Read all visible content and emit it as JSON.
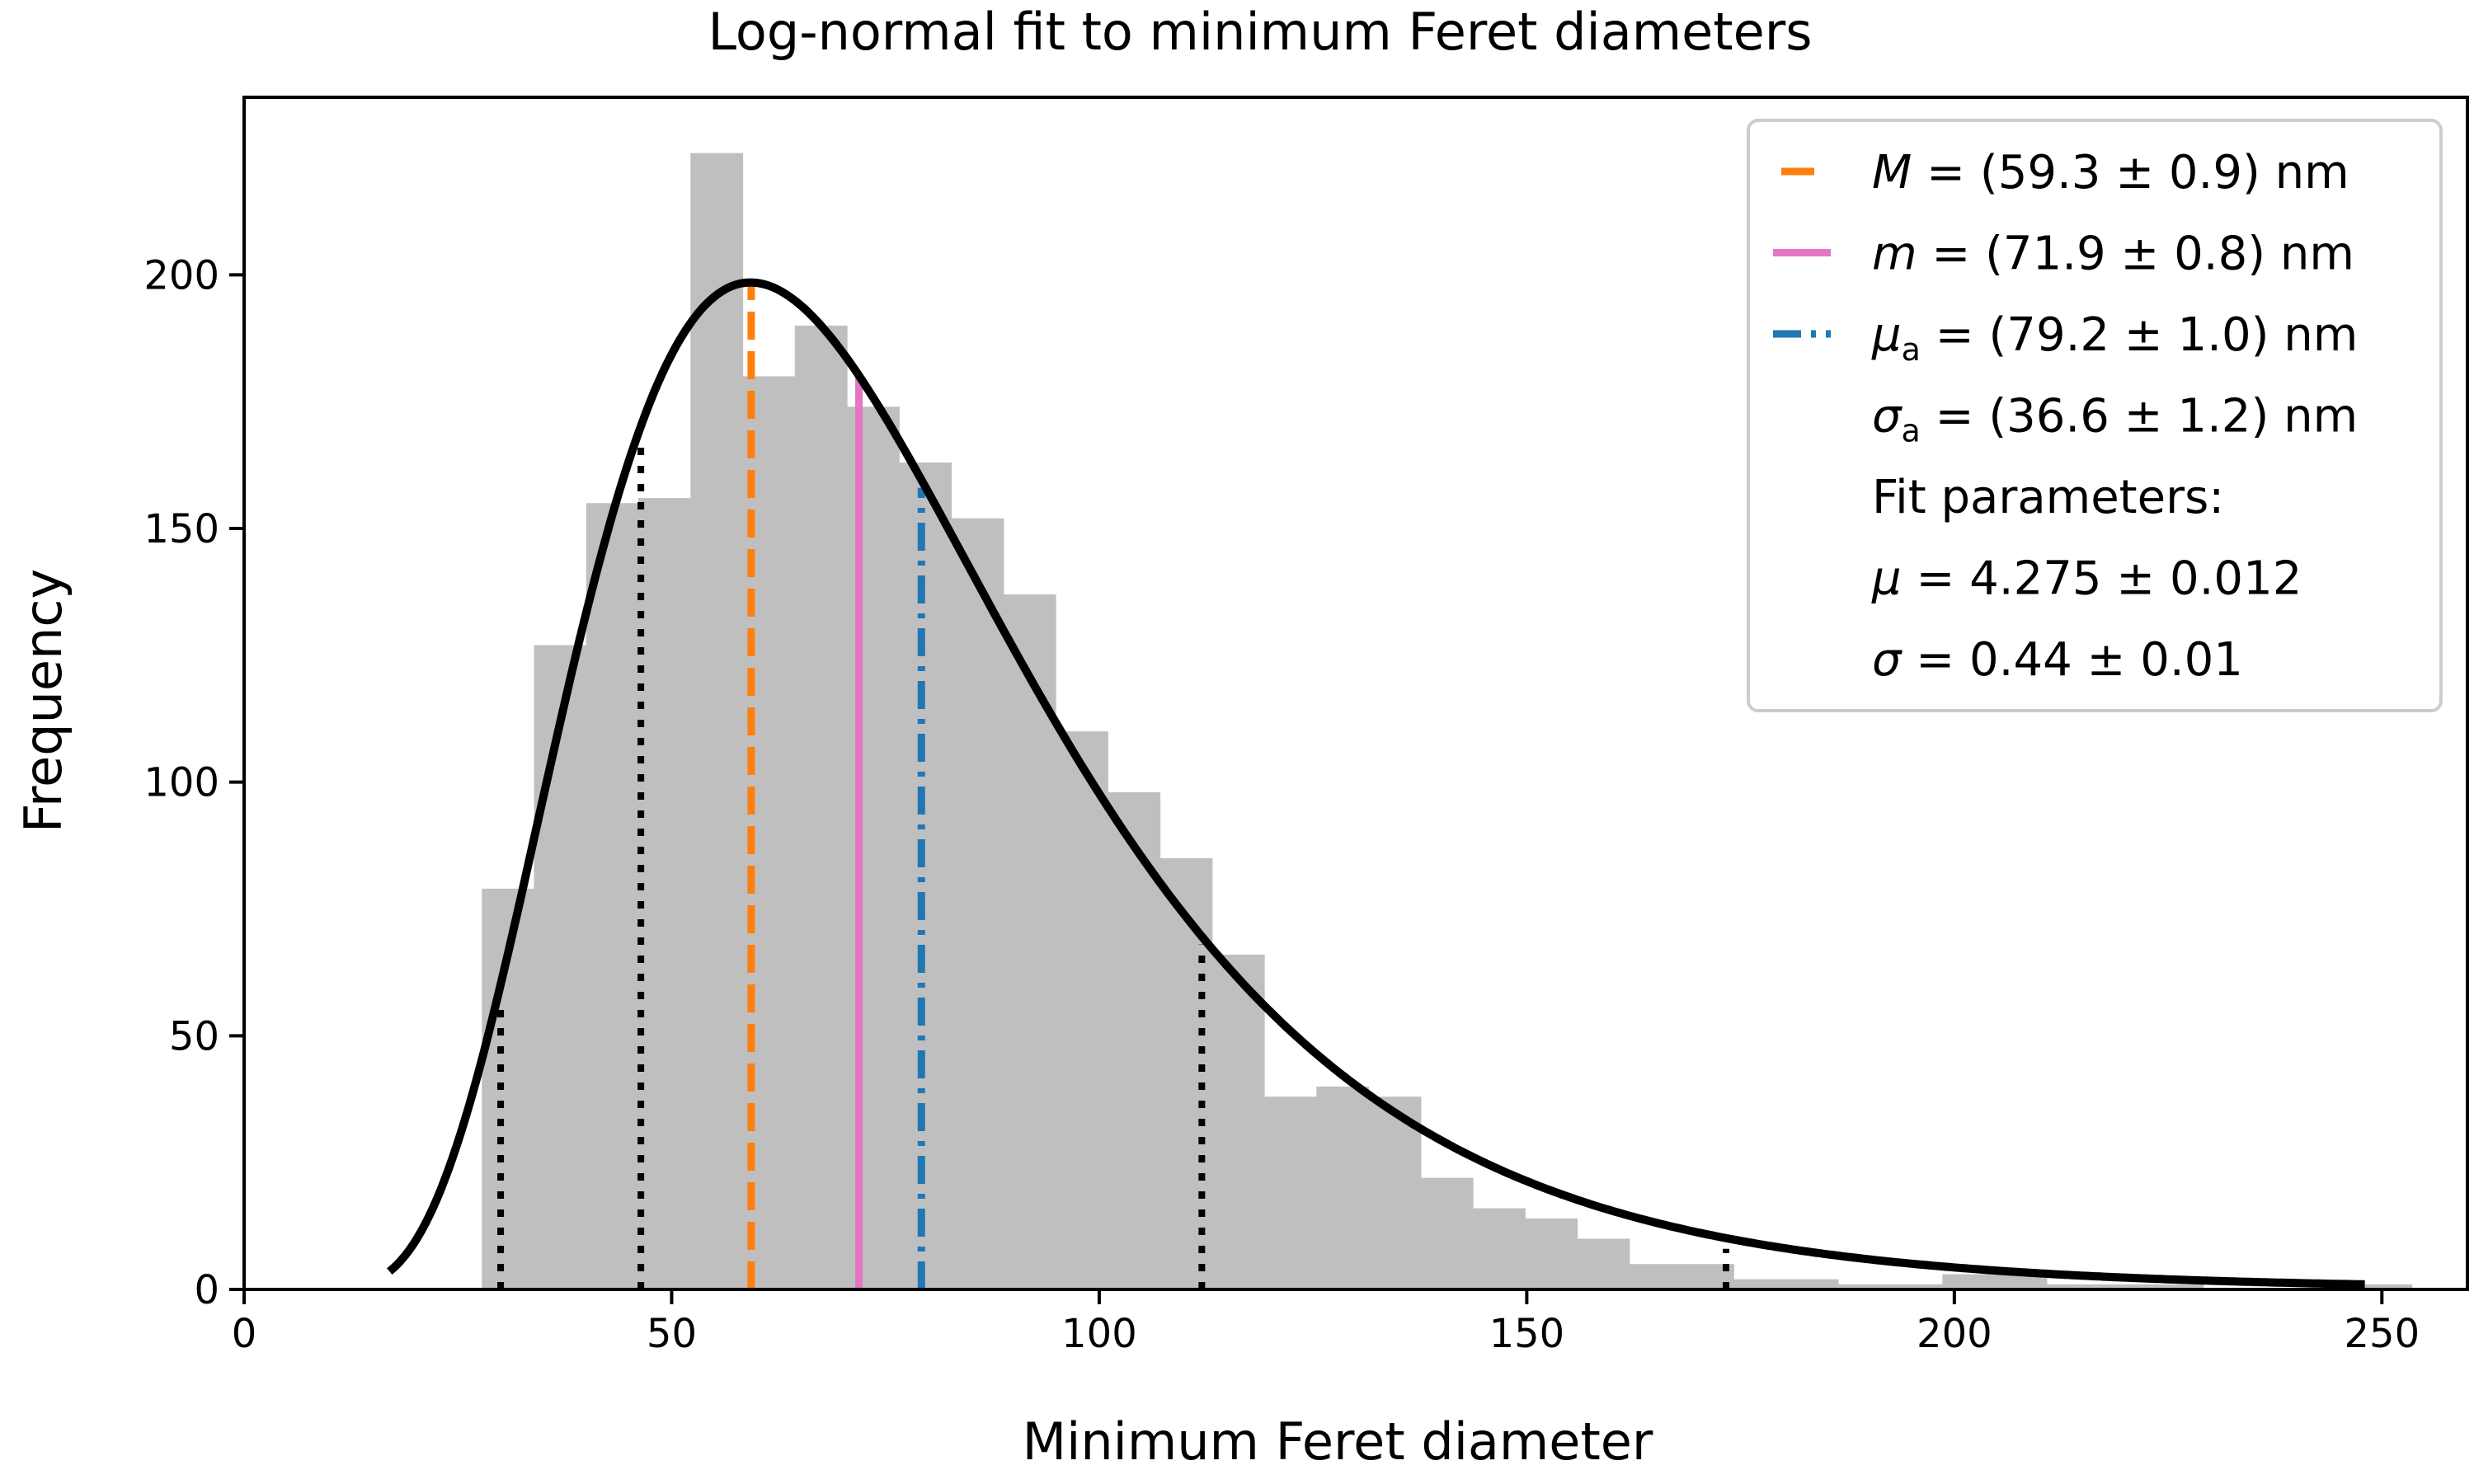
{
  "chart_data": {
    "type": "bar",
    "title": "Log-normal fit to minimum Feret diameters",
    "xlabel": "Minimum Feret diameter",
    "ylabel": "Frequency",
    "xlim": [
      0,
      260
    ],
    "ylim": [
      0,
      235
    ],
    "x_ticks": [
      0,
      50,
      100,
      150,
      200,
      250
    ],
    "y_ticks": [
      0,
      50,
      100,
      150,
      200
    ],
    "grid": false,
    "legend_placement": "top-right",
    "histogram": {
      "bin_width": 6.1,
      "bin_start": 27.8,
      "counts": [
        79,
        127,
        155,
        156,
        224,
        180,
        190,
        174,
        163,
        152,
        137,
        110,
        98,
        85,
        66,
        38,
        40,
        38,
        22,
        16,
        14,
        10,
        5,
        5,
        2,
        2,
        1,
        1,
        3,
        3,
        1,
        1,
        1,
        0,
        0,
        0,
        1
      ],
      "color": "#bfbfbf"
    },
    "fit_curve": {
      "model": "log-normal",
      "mu": 4.275,
      "sigma": 0.44,
      "x_range": [
        17,
        248
      ],
      "peak_frequency": 198.5,
      "color": "#000000"
    },
    "vertical_lines": [
      {
        "name": "mode",
        "x": 59.3,
        "y_top": 198.5,
        "color": "#ff7f0e",
        "style": "dashed"
      },
      {
        "name": "median",
        "x": 71.9,
        "y_top": 180,
        "color": "#e377c2",
        "style": "solid"
      },
      {
        "name": "mean",
        "x": 79.2,
        "y_top": 158,
        "color": "#1f77b4",
        "style": "dashdot"
      },
      {
        "name": "p1",
        "x": 30.0,
        "y_top": 57,
        "color": "#000000",
        "style": "dotted"
      },
      {
        "name": "p2",
        "x": 46.4,
        "y_top": 168,
        "color": "#000000",
        "style": "dotted"
      },
      {
        "name": "p3",
        "x": 112.0,
        "y_top": 68,
        "color": "#000000",
        "style": "dotted"
      },
      {
        "name": "p4",
        "x": 173.3,
        "y_top": 8,
        "color": "#000000",
        "style": "dotted"
      }
    ],
    "legend": [
      {
        "marker": "dashed",
        "color": "#ff7f0e",
        "sym": "M",
        "sub": "",
        "rest": " = (59.3 ± 0.9) nm"
      },
      {
        "marker": "solid",
        "color": "#e377c2",
        "sym": "m",
        "sub": "",
        "rest": " = (71.9 ± 0.8) nm"
      },
      {
        "marker": "dashdot",
        "color": "#1f77b4",
        "sym": "μ",
        "sub": "a",
        "rest": " = (79.2 ± 1.0) nm"
      },
      {
        "marker": "none",
        "color": "",
        "sym": "σ",
        "sub": "a",
        "rest": " = (36.6 ± 1.2) nm"
      },
      {
        "marker": "none",
        "color": "",
        "sym": "",
        "sub": "",
        "rest": "Fit parameters:"
      },
      {
        "marker": "none",
        "color": "",
        "sym": "μ",
        "sub": "",
        "rest": " = 4.275 ± 0.012"
      },
      {
        "marker": "none",
        "color": "",
        "sym": "σ",
        "sub": "",
        "rest": " = 0.44 ± 0.01"
      }
    ]
  }
}
